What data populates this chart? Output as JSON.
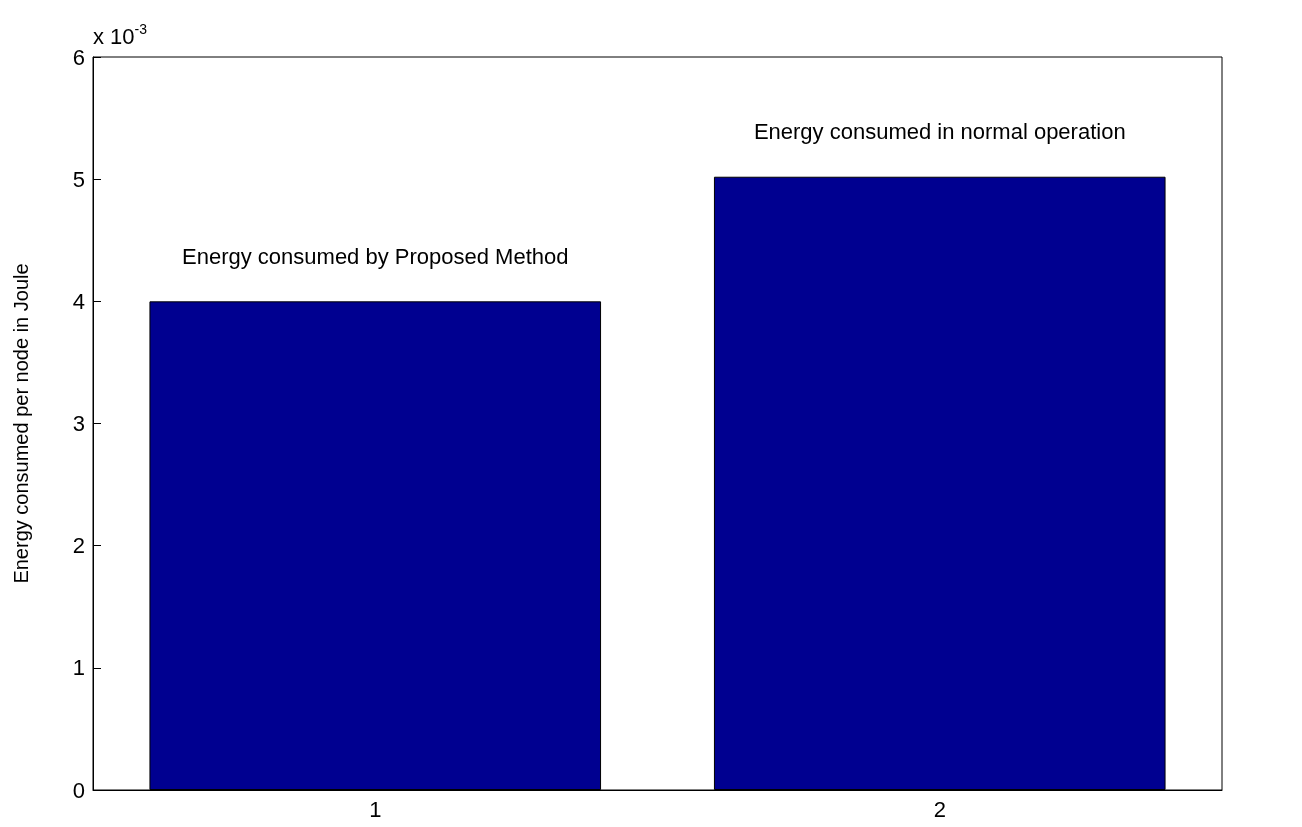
{
  "chart_data": {
    "type": "bar",
    "ylabel": "Energy consumed per node in Joule",
    "categories": [
      "1",
      "2"
    ],
    "values": [
      4,
      5.02
    ],
    "color": "#000090",
    "ylim": [
      0,
      6
    ],
    "yticks": [
      0,
      1,
      2,
      3,
      4,
      5,
      6
    ],
    "grid": false,
    "annotations": [
      "x 10$^{-3}$",
      "Energy consumed by Proposed Method",
      "Energy consumed in normal operation"
    ]
  }
}
